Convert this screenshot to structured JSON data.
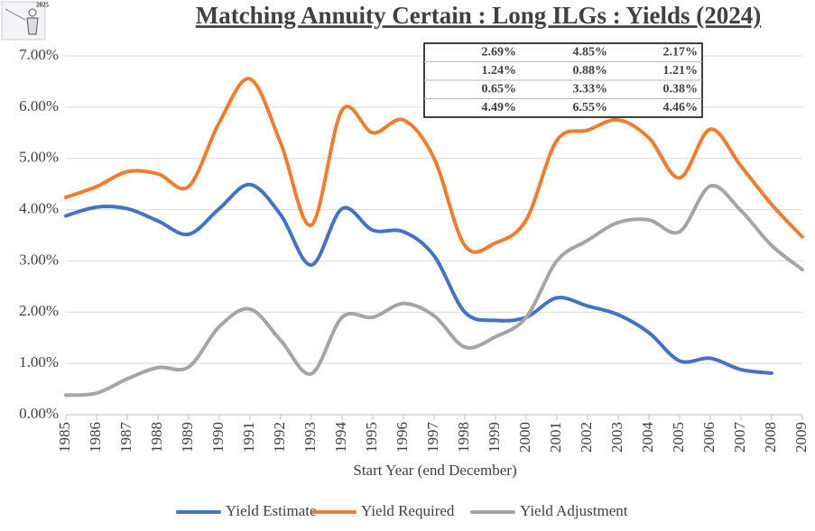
{
  "chart_data": {
    "type": "line",
    "title": "Matching Annuity Certain : Long ILGs : Yields (2024)",
    "logo_text": "2025",
    "xlabel": "Start Year (end December)",
    "categories": [
      "1985",
      "1986",
      "1987",
      "1988",
      "1989",
      "1990",
      "1991",
      "1992",
      "1993",
      "1994",
      "1995",
      "1996",
      "1997",
      "1998",
      "1999",
      "2000",
      "2001",
      "2002",
      "2003",
      "2004",
      "2005",
      "2006",
      "2007",
      "2008",
      "2009"
    ],
    "series": [
      {
        "name": "Yield Estimate",
        "color": "#4472c4",
        "values": [
          3.88,
          4.05,
          4.02,
          3.78,
          3.52,
          4.02,
          4.49,
          3.9,
          2.92,
          4.02,
          3.6,
          3.57,
          3.1,
          2.0,
          1.84,
          1.9,
          2.28,
          2.12,
          1.95,
          1.6,
          1.05,
          1.1,
          0.88,
          0.81,
          null
        ]
      },
      {
        "name": "Yield Required",
        "color": "#ed7d31",
        "values": [
          4.24,
          4.45,
          4.74,
          4.7,
          4.45,
          5.7,
          6.55,
          5.3,
          3.7,
          5.94,
          5.5,
          5.75,
          5.0,
          3.3,
          3.35,
          3.8,
          5.35,
          5.55,
          5.75,
          5.4,
          4.62,
          5.57,
          4.85,
          4.1,
          3.47
        ]
      },
      {
        "name": "Yield Adjustment",
        "color": "#a5a5a5",
        "values": [
          0.38,
          0.42,
          0.7,
          0.92,
          0.93,
          1.72,
          2.06,
          1.45,
          0.8,
          1.9,
          1.9,
          2.17,
          1.93,
          1.32,
          1.52,
          1.9,
          3.0,
          3.4,
          3.75,
          3.8,
          3.57,
          4.46,
          3.98,
          3.3,
          2.83
        ]
      }
    ],
    "ylim": [
      0,
      7
    ],
    "yticks": [
      {
        "value": 0,
        "label": "0.00%"
      },
      {
        "value": 1,
        "label": "1.00%"
      },
      {
        "value": 2,
        "label": "2.00%"
      },
      {
        "value": 3,
        "label": "3.00%"
      },
      {
        "value": 4,
        "label": "4.00%"
      },
      {
        "value": 5,
        "label": "5.00%"
      },
      {
        "value": 6,
        "label": "6.00%"
      },
      {
        "value": 7,
        "label": "7.00%"
      }
    ],
    "grid": true,
    "legend": "bottom",
    "table": {
      "colors": [
        "#0070c0",
        "#ff0000",
        "#a5a5a5"
      ],
      "rows": [
        [
          "2.69%",
          "4.85%",
          "2.17%"
        ],
        [
          "1.24%",
          "0.88%",
          "1.21%"
        ],
        [
          "0.65%",
          "3.33%",
          "0.38%"
        ],
        [
          "4.49%",
          "6.55%",
          "4.46%"
        ]
      ]
    }
  }
}
